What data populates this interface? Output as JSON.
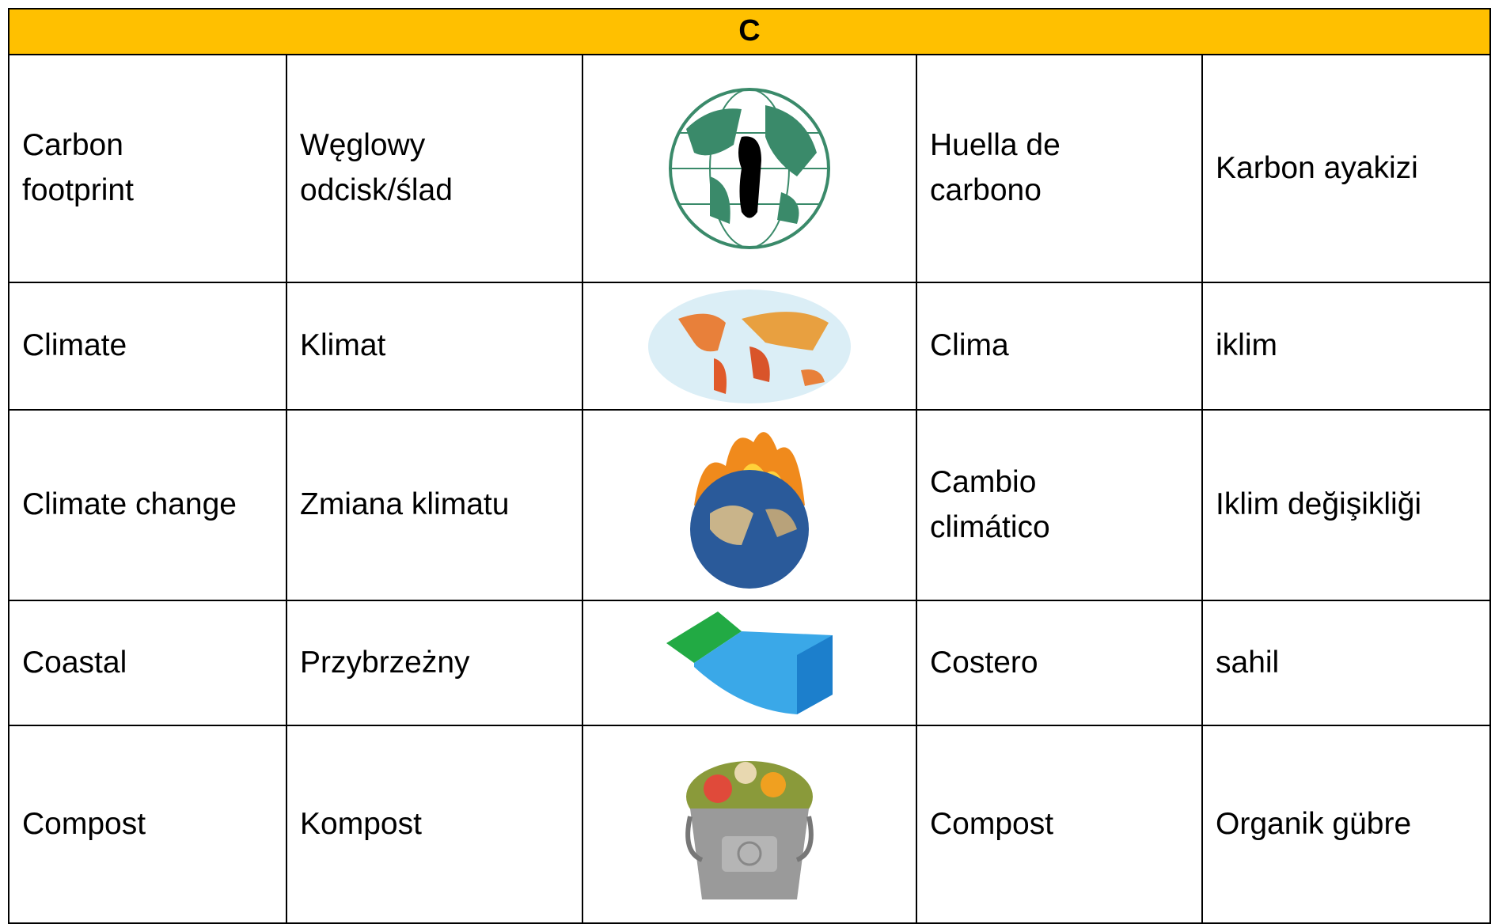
{
  "header": {
    "title": "C"
  },
  "table": {
    "rows": [
      [
        "Carbon footprint",
        "Węglowy odcisk/ślad",
        "Huella de carbono",
        "Karbon ayakizi"
      ],
      [
        "Climate",
        "Klimat",
        "Clima",
        "iklim"
      ],
      [
        "Climate change",
        "Zmiana klimatu",
        "Cambio climático",
        "Iklim değişikliği"
      ],
      [
        "Coastal",
        "Przybrzeżny",
        "Costero",
        "sahil"
      ],
      [
        "Compost",
        "Kompost",
        "Compost",
        "Organik gübre"
      ]
    ]
  }
}
